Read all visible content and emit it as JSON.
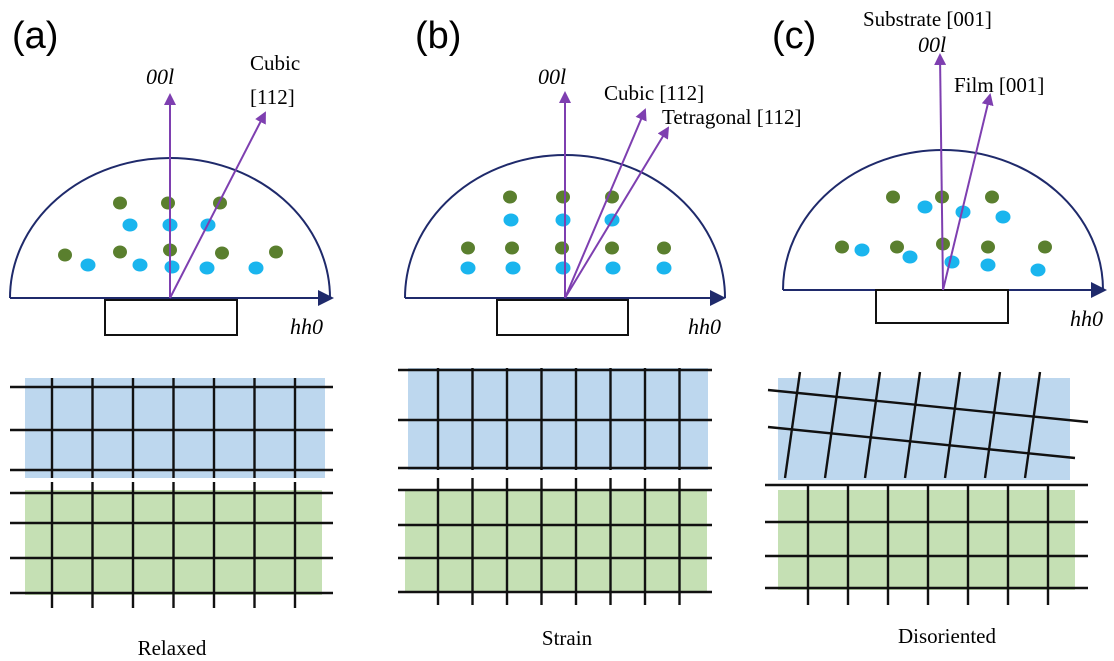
{
  "panels": [
    {
      "label": "(a)",
      "axis_vertical": "00l",
      "axis_horizontal": "hh0",
      "vector_labels": [
        "Cubic",
        "[112]"
      ],
      "caption": "Relaxed"
    },
    {
      "label": "(b)",
      "axis_vertical": "00l",
      "axis_horizontal": "hh0",
      "vector_labels": [
        "Cubic [112]",
        "Tetragonal [112]"
      ],
      "caption": "Strain"
    },
    {
      "label": "(c)",
      "axis_vertical": "00l",
      "axis_horizontal": "hh0",
      "vector_labels": [
        "Substrate [001]",
        "Film [001]"
      ],
      "caption": "Disoriented"
    }
  ]
}
